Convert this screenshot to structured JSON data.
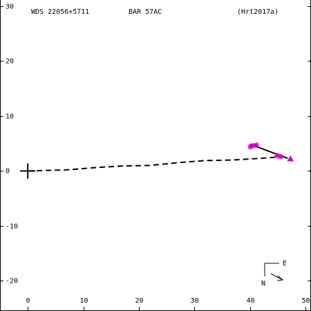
{
  "header": {
    "designation": "WDS 22056+5711",
    "discoverer": "BAR  57AC",
    "reference": "(Hrt2017a)"
  },
  "compass": {
    "east_label": "E",
    "north_label": "N"
  },
  "chart_data": {
    "type": "scatter",
    "title": "",
    "xlabel": "",
    "ylabel": "",
    "xlim": [
      -5,
      51
    ],
    "ylim": [
      -25.5,
      30.5
    ],
    "x_ticks": [
      0,
      10,
      20,
      30,
      40,
      50
    ],
    "y_ticks": [
      -20,
      -10,
      0,
      10,
      20,
      30
    ],
    "grid": false,
    "primary_star": {
      "x": 0,
      "y": 0,
      "marker": "plus"
    },
    "orbit_track": {
      "style": "dashed",
      "points": [
        [
          0,
          0
        ],
        [
          7,
          0.2
        ],
        [
          12,
          0.6
        ],
        [
          17,
          0.9
        ],
        [
          22,
          1.0
        ],
        [
          27,
          1.5
        ],
        [
          32,
          1.9
        ],
        [
          37,
          2.0
        ],
        [
          42,
          2.3
        ],
        [
          46,
          2.6
        ]
      ]
    },
    "series": [
      {
        "marker": "asterisk",
        "color": "#cc00cc",
        "points": [
          [
            40.1,
            4.4
          ],
          [
            40.6,
            4.6
          ],
          [
            41.2,
            4.7
          ],
          [
            44.9,
            2.8
          ],
          [
            45.5,
            2.6
          ]
        ]
      },
      {
        "marker": "triangle",
        "color": "#cc00cc",
        "points": [
          [
            47.3,
            2.2
          ]
        ]
      }
    ],
    "fit_line": {
      "from": [
        40,
        4.9
      ],
      "to": [
        46.8,
        2.3
      ]
    }
  }
}
